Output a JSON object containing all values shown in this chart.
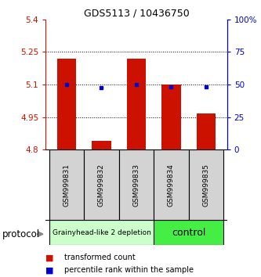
{
  "title": "GDS5113 / 10436750",
  "samples": [
    "GSM999831",
    "GSM999832",
    "GSM999833",
    "GSM999834",
    "GSM999835"
  ],
  "bar_values": [
    5.22,
    4.84,
    5.22,
    5.1,
    4.965
  ],
  "bar_base": 4.8,
  "blue_values_left": [
    5.1,
    5.085,
    5.1,
    5.09,
    5.09
  ],
  "ylim_left": [
    4.8,
    5.4
  ],
  "ylim_right": [
    0,
    100
  ],
  "yticks_left": [
    4.8,
    4.95,
    5.1,
    5.25,
    5.4
  ],
  "ytick_labels_left": [
    "4.8",
    "4.95",
    "5.1",
    "5.25",
    "5.4"
  ],
  "yticks_right": [
    0,
    25,
    50,
    75,
    100
  ],
  "ytick_labels_right": [
    "0",
    "25",
    "50",
    "75",
    "100%"
  ],
  "hlines": [
    4.95,
    5.1,
    5.25
  ],
  "bar_color": "#cc1100",
  "blue_color": "#0000cc",
  "groups": [
    {
      "label": "Grainyhead-like 2 depletion",
      "indices": [
        0,
        1,
        2
      ],
      "color": "#ccffcc",
      "text_size": 6.5
    },
    {
      "label": "control",
      "indices": [
        3,
        4
      ],
      "color": "#44ee44",
      "text_size": 9
    }
  ],
  "protocol_label": "protocol",
  "legend_red_label": "transformed count",
  "legend_blue_label": "percentile rank within the sample",
  "bar_width": 0.55,
  "figsize": [
    3.33,
    3.54
  ],
  "dpi": 100,
  "title_fontsize": 9,
  "tick_fontsize": 7.5,
  "sample_fontsize": 6.5
}
